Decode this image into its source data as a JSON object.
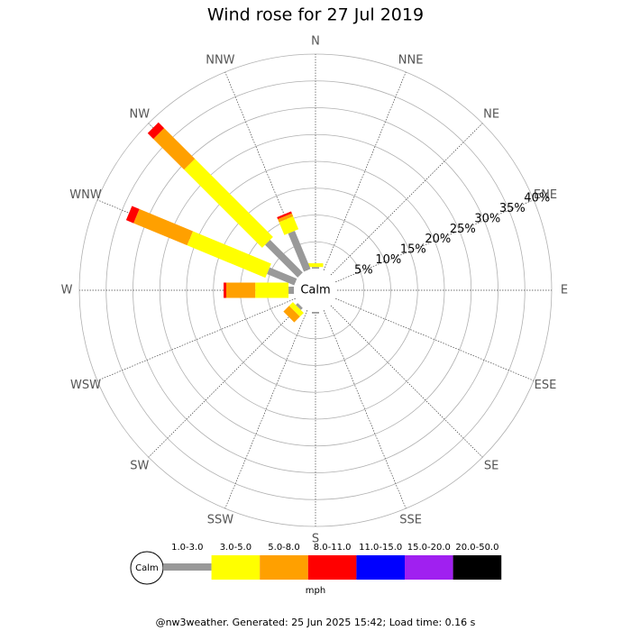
{
  "chart_data": {
    "type": "windrose",
    "title": "Wind rose for 27 Jul 2019",
    "categories": [
      "N",
      "NNE",
      "NE",
      "ENE",
      "E",
      "ESE",
      "SE",
      "SSE",
      "S",
      "SSW",
      "SW",
      "WSW",
      "W",
      "WNW",
      "NW",
      "NNW"
    ],
    "series": [
      {
        "name": "1.0-3.0",
        "color": "#999999",
        "values": [
          0.3,
          0,
          0,
          0,
          0,
          0,
          0,
          0,
          0.3,
          0,
          0.5,
          0,
          1.0,
          5.5,
          8.6,
          7.7
        ]
      },
      {
        "name": "3.0-5.0",
        "color": "#ffff00",
        "values": [
          0.7,
          0,
          0,
          0,
          0,
          0,
          0,
          0,
          0,
          0,
          1.0,
          0,
          6.2,
          15.8,
          20.6,
          2.6
        ]
      },
      {
        "name": "5.0-8.0",
        "color": "#ffa000",
        "values": [
          0,
          0,
          0,
          0,
          0,
          0,
          0,
          0,
          0,
          0,
          1.5,
          0,
          5.4,
          10.8,
          8.1,
          0.6
        ]
      },
      {
        "name": "8.0-11.0",
        "color": "#ff0000",
        "values": [
          0,
          0,
          0,
          0,
          0,
          0,
          0,
          0,
          0,
          0,
          0,
          0,
          0.5,
          1.5,
          1.5,
          0.4
        ]
      },
      {
        "name": "11.0-15.0",
        "color": "#0000ff",
        "values": [
          0,
          0,
          0,
          0,
          0,
          0,
          0,
          0,
          0,
          0,
          0,
          0,
          0,
          0,
          0,
          0
        ]
      },
      {
        "name": "15.0-20.0",
        "color": "#a020f0",
        "values": [
          0,
          0,
          0,
          0,
          0,
          0,
          0,
          0,
          0,
          0,
          0,
          0,
          0,
          0,
          0,
          0
        ]
      },
      {
        "name": "20.0-50.0",
        "color": "#000000",
        "values": [
          0,
          0,
          0,
          0,
          0,
          0,
          0,
          0,
          0,
          0,
          0,
          0,
          0,
          0,
          0,
          0
        ]
      }
    ],
    "ylim": [
      0,
      40
    ],
    "yticks": [
      {
        "value": 5,
        "label": "5%"
      },
      {
        "value": 10,
        "label": "10%"
      },
      {
        "value": 15,
        "label": "15%"
      },
      {
        "value": 20,
        "label": "20%"
      },
      {
        "value": 25,
        "label": "25%"
      },
      {
        "value": 30,
        "label": "30%"
      },
      {
        "value": 35,
        "label": "35%"
      },
      {
        "value": 40,
        "label": "40%"
      }
    ],
    "center_label": "Calm",
    "unit": "mph",
    "footer": "@nw3weather. Generated: 25 Jun 2025 15:42; Load time: 0.16 s"
  }
}
